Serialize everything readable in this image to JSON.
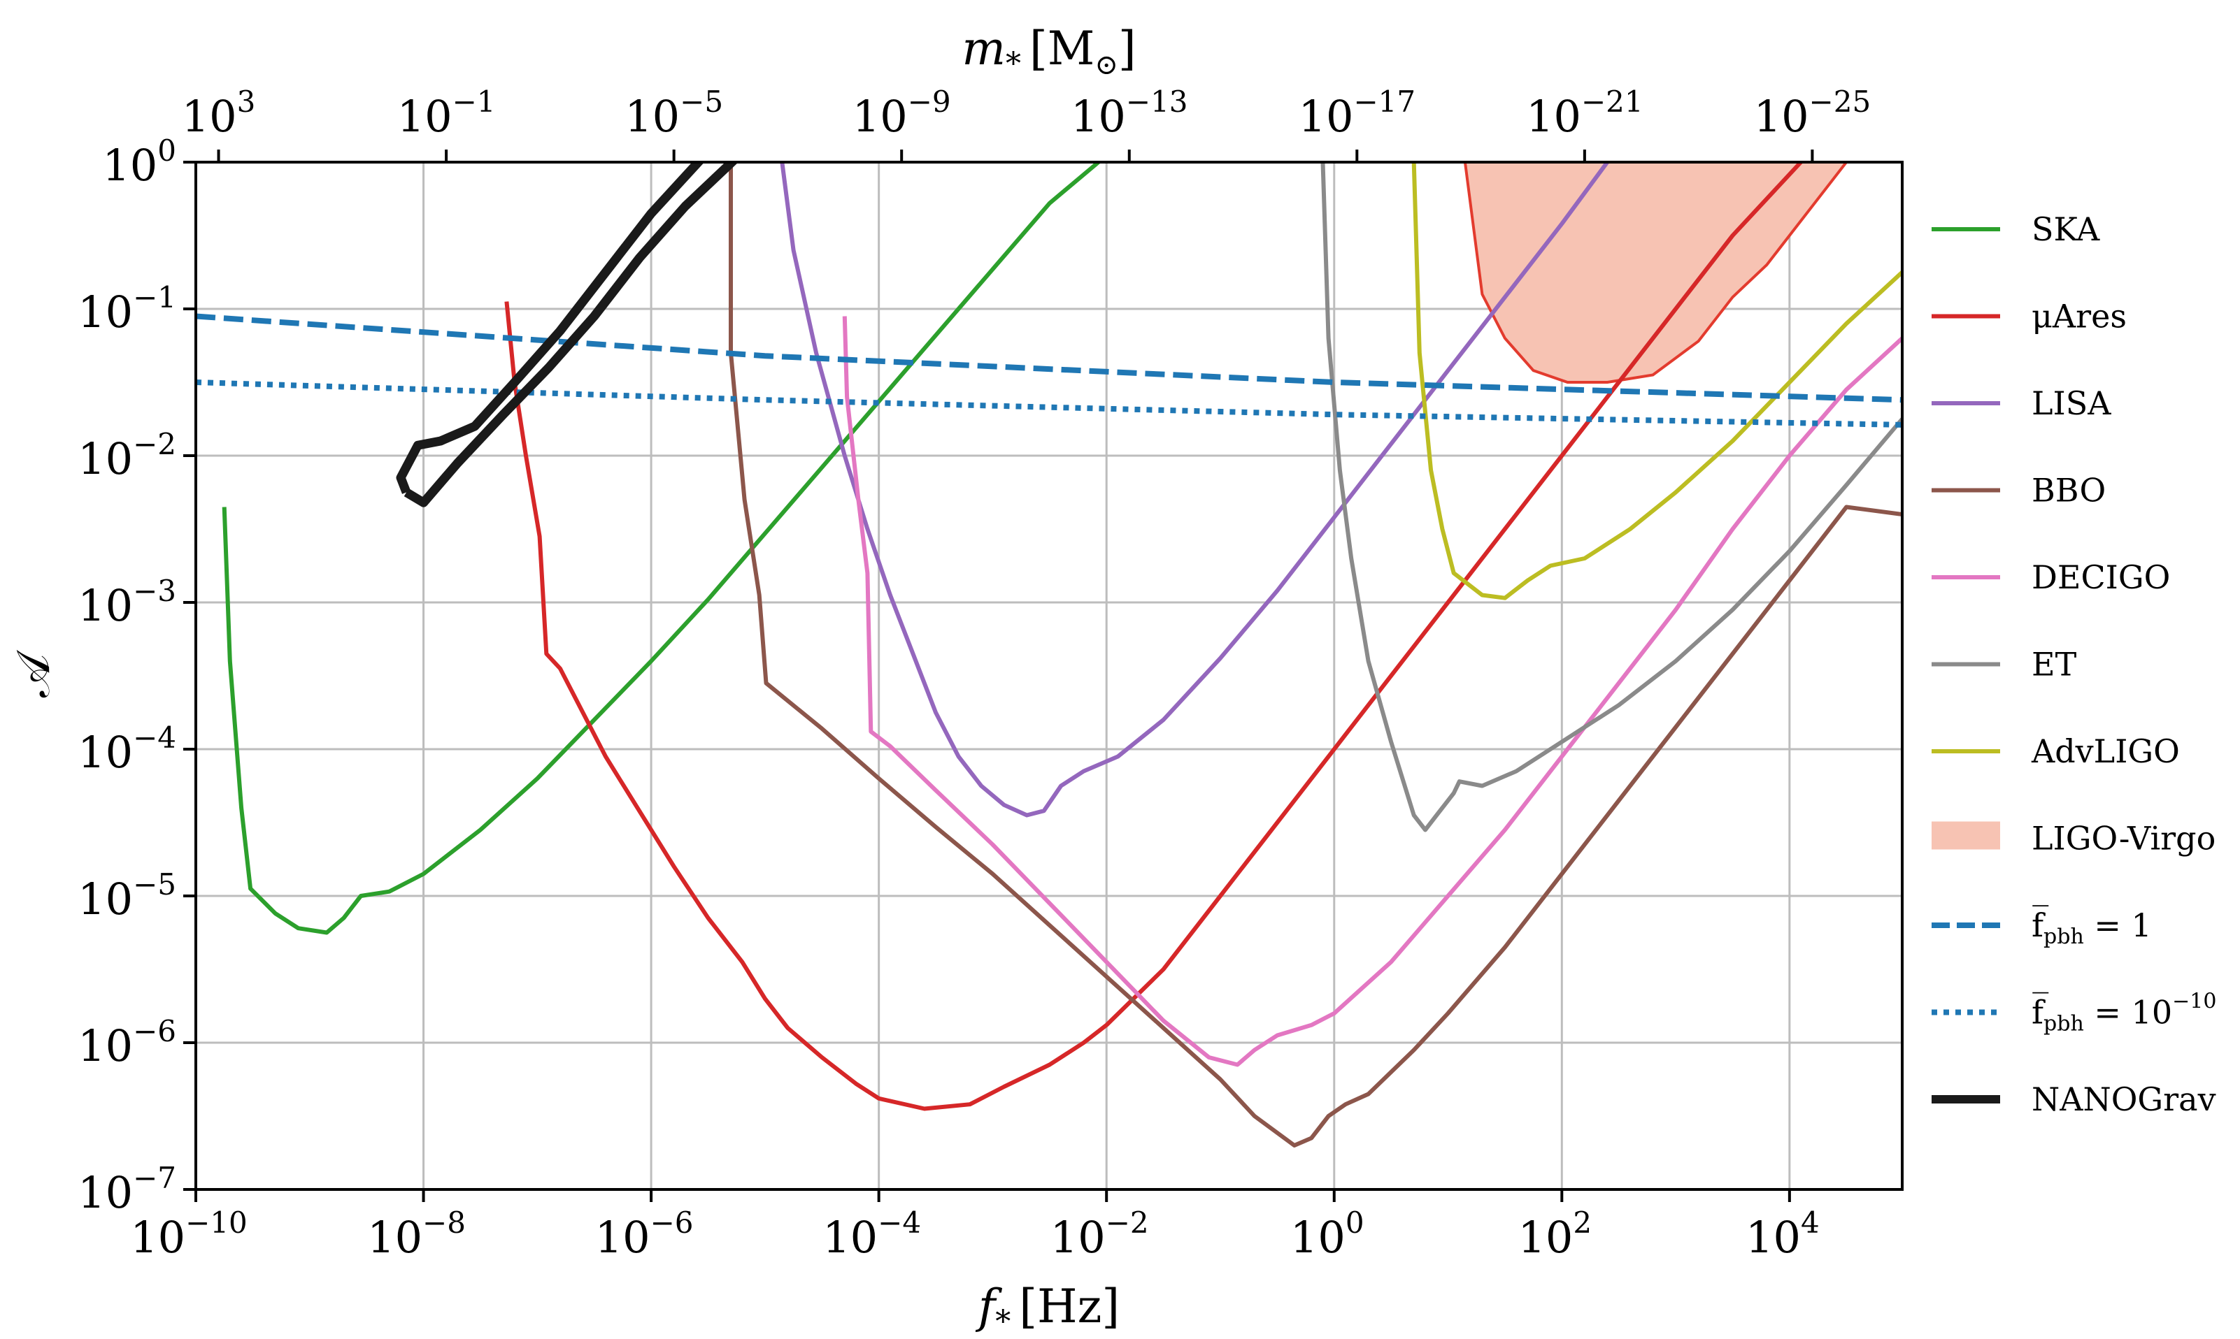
{
  "chart_data": {
    "type": "line",
    "x_axis": {
      "label": "f",
      "label_sub": "*",
      "label_unit": "[Hz]",
      "scale": "log",
      "range_log10": [
        -10,
        4.99
      ],
      "ticks": [
        {
          "base": "10",
          "exp": "−10",
          "log": -10
        },
        {
          "base": "10",
          "exp": "−8",
          "log": -8
        },
        {
          "base": "10",
          "exp": "−6",
          "log": -6
        },
        {
          "base": "10",
          "exp": "−4",
          "log": -4
        },
        {
          "base": "10",
          "exp": "−2",
          "log": -2
        },
        {
          "base": "10",
          "exp": "0",
          "log": 0
        },
        {
          "base": "10",
          "exp": "2",
          "log": 2
        },
        {
          "base": "10",
          "exp": "4",
          "log": 4
        }
      ]
    },
    "top_axis": {
      "label": "m",
      "label_sub": "*",
      "label_unit_open": "[M",
      "label_unit_close": "]",
      "ticks": [
        {
          "base": "10",
          "exp": "3",
          "at_f_log": -9.8
        },
        {
          "base": "10",
          "exp": "−1",
          "at_f_log": -7.8
        },
        {
          "base": "10",
          "exp": "−5",
          "at_f_log": -5.8
        },
        {
          "base": "10",
          "exp": "−9",
          "at_f_log": -3.8
        },
        {
          "base": "10",
          "exp": "−13",
          "at_f_log": -1.8
        },
        {
          "base": "10",
          "exp": "−17",
          "at_f_log": 0.2
        },
        {
          "base": "10",
          "exp": "−21",
          "at_f_log": 2.2
        },
        {
          "base": "10",
          "exp": "−25",
          "at_f_log": 4.2
        }
      ]
    },
    "y_axis": {
      "label": "𝒜",
      "scale": "log",
      "range_log10": [
        -7,
        0
      ],
      "ticks": [
        {
          "base": "10",
          "exp": "0",
          "log": 0
        },
        {
          "base": "10",
          "exp": "−1",
          "log": -1
        },
        {
          "base": "10",
          "exp": "−2",
          "log": -2
        },
        {
          "base": "10",
          "exp": "−3",
          "log": -3
        },
        {
          "base": "10",
          "exp": "−4",
          "log": -4
        },
        {
          "base": "10",
          "exp": "−5",
          "log": -5
        },
        {
          "base": "10",
          "exp": "−6",
          "log": -6
        },
        {
          "base": "10",
          "exp": "−7",
          "log": -7
        }
      ]
    },
    "grid": true,
    "legend_position": "right-outside",
    "series": [
      {
        "name": "SKA",
        "color": "#2ca02c",
        "style": "solid",
        "points": [
          [
            -9.75,
            -2.35
          ],
          [
            -9.7,
            -3.4
          ],
          [
            -9.6,
            -4.4
          ],
          [
            -9.52,
            -4.95
          ],
          [
            -9.3,
            -5.12
          ],
          [
            -9.1,
            -5.22
          ],
          [
            -8.85,
            -5.25
          ],
          [
            -8.7,
            -5.15
          ],
          [
            -8.55,
            -5.0
          ],
          [
            -8.3,
            -4.97
          ],
          [
            -8,
            -4.85
          ],
          [
            -7.5,
            -4.55
          ],
          [
            -7,
            -4.2
          ],
          [
            -6.5,
            -3.8
          ],
          [
            -6,
            -3.4
          ],
          [
            -5.5,
            -2.98
          ],
          [
            -5,
            -2.53
          ],
          [
            -4.5,
            -2.08
          ],
          [
            -4,
            -1.63
          ],
          [
            -3.5,
            -1.18
          ],
          [
            -3,
            -0.73
          ],
          [
            -2.5,
            -0.28
          ],
          [
            -2.07,
            0
          ]
        ]
      },
      {
        "name": "μAres",
        "color": "#d62728",
        "style": "solid",
        "points": [
          [
            -7.27,
            -0.95
          ],
          [
            -7.2,
            -1.5
          ],
          [
            -7.1,
            -2.0
          ],
          [
            -6.98,
            -2.55
          ],
          [
            -6.92,
            -3.35
          ],
          [
            -6.8,
            -3.45
          ],
          [
            -6.6,
            -3.75
          ],
          [
            -6.4,
            -4.05
          ],
          [
            -6.2,
            -4.3
          ],
          [
            -6,
            -4.55
          ],
          [
            -5.8,
            -4.8
          ],
          [
            -5.5,
            -5.15
          ],
          [
            -5.2,
            -5.45
          ],
          [
            -5,
            -5.7
          ],
          [
            -4.8,
            -5.9
          ],
          [
            -4.5,
            -6.1
          ],
          [
            -4.2,
            -6.28
          ],
          [
            -4,
            -6.38
          ],
          [
            -3.6,
            -6.45
          ],
          [
            -3.2,
            -6.42
          ],
          [
            -2.9,
            -6.3
          ],
          [
            -2.5,
            -6.15
          ],
          [
            -2.2,
            -6.0
          ],
          [
            -2,
            -5.88
          ],
          [
            -1.5,
            -5.5
          ],
          [
            -1,
            -5.0
          ],
          [
            -0.5,
            -4.5
          ],
          [
            0,
            -4.0
          ],
          [
            0.5,
            -3.5
          ],
          [
            1,
            -3.0
          ],
          [
            1.5,
            -2.5
          ],
          [
            2,
            -2.0
          ],
          [
            2.5,
            -1.5
          ],
          [
            3,
            -1.0
          ],
          [
            3.5,
            -0.5
          ],
          [
            4.1,
            0
          ]
        ]
      },
      {
        "name": "LISA",
        "color": "#9467bd",
        "style": "solid",
        "points": [
          [
            -4.85,
            0
          ],
          [
            -4.75,
            -0.6
          ],
          [
            -4.55,
            -1.3
          ],
          [
            -4.3,
            -2.0
          ],
          [
            -4.1,
            -2.5
          ],
          [
            -3.9,
            -2.95
          ],
          [
            -3.7,
            -3.35
          ],
          [
            -3.5,
            -3.75
          ],
          [
            -3.3,
            -4.05
          ],
          [
            -3.1,
            -4.25
          ],
          [
            -2.9,
            -4.38
          ],
          [
            -2.7,
            -4.45
          ],
          [
            -2.55,
            -4.42
          ],
          [
            -2.4,
            -4.25
          ],
          [
            -2.2,
            -4.15
          ],
          [
            -1.9,
            -4.05
          ],
          [
            -1.5,
            -3.8
          ],
          [
            -1,
            -3.38
          ],
          [
            -0.5,
            -2.92
          ],
          [
            0,
            -2.42
          ],
          [
            0.5,
            -1.92
          ],
          [
            1,
            -1.42
          ],
          [
            1.5,
            -0.92
          ],
          [
            2,
            -0.42
          ],
          [
            2.4,
            0
          ]
        ]
      },
      {
        "name": "BBO",
        "color": "#8c564b",
        "style": "solid",
        "points": [
          [
            -5.3,
            0
          ],
          [
            -5.3,
            -1.3
          ],
          [
            -5.18,
            -2.3
          ],
          [
            -5.05,
            -2.95
          ],
          [
            -4.99,
            -3.55
          ],
          [
            -4.5,
            -3.86
          ],
          [
            -4,
            -4.2
          ],
          [
            -3.5,
            -4.53
          ],
          [
            -3,
            -4.85
          ],
          [
            -2.5,
            -5.2
          ],
          [
            -2,
            -5.55
          ],
          [
            -1.5,
            -5.9
          ],
          [
            -1,
            -6.25
          ],
          [
            -0.7,
            -6.5
          ],
          [
            -0.35,
            -6.7
          ],
          [
            -0.2,
            -6.65
          ],
          [
            -0.05,
            -6.5
          ],
          [
            0.1,
            -6.42
          ],
          [
            0.3,
            -6.35
          ],
          [
            0.7,
            -6.05
          ],
          [
            1,
            -5.8
          ],
          [
            1.5,
            -5.35
          ],
          [
            2,
            -4.85
          ],
          [
            2.5,
            -4.35
          ],
          [
            3,
            -3.85
          ],
          [
            3.5,
            -3.35
          ],
          [
            4,
            -2.85
          ],
          [
            4.5,
            -2.35
          ],
          [
            4.99,
            -2.4
          ]
        ]
      },
      {
        "name": "DECIGO",
        "color": "#e377c2",
        "style": "solid",
        "points": [
          [
            -4.3,
            -1.05
          ],
          [
            -4.28,
            -1.6
          ],
          [
            -4.18,
            -2.3
          ],
          [
            -4.1,
            -2.8
          ],
          [
            -4.07,
            -3.88
          ],
          [
            -3.9,
            -3.98
          ],
          [
            -3.5,
            -4.28
          ],
          [
            -3,
            -4.65
          ],
          [
            -2.5,
            -5.05
          ],
          [
            -2,
            -5.45
          ],
          [
            -1.5,
            -5.85
          ],
          [
            -1.1,
            -6.1
          ],
          [
            -0.85,
            -6.15
          ],
          [
            -0.7,
            -6.05
          ],
          [
            -0.5,
            -5.95
          ],
          [
            -0.2,
            -5.88
          ],
          [
            0,
            -5.8
          ],
          [
            0.5,
            -5.45
          ],
          [
            1,
            -5.0
          ],
          [
            1.5,
            -4.55
          ],
          [
            2,
            -4.05
          ],
          [
            2.5,
            -3.55
          ],
          [
            3,
            -3.05
          ],
          [
            3.5,
            -2.5
          ],
          [
            4,
            -2.0
          ],
          [
            4.5,
            -1.55
          ],
          [
            4.99,
            -1.2
          ]
        ]
      },
      {
        "name": "ET",
        "color": "#8a8a8a",
        "style": "solid",
        "points": [
          [
            -0.1,
            0
          ],
          [
            -0.05,
            -1.2
          ],
          [
            0.05,
            -2.1
          ],
          [
            0.15,
            -2.7
          ],
          [
            0.3,
            -3.4
          ],
          [
            0.5,
            -3.95
          ],
          [
            0.7,
            -4.45
          ],
          [
            0.8,
            -4.55
          ],
          [
            0.9,
            -4.45
          ],
          [
            1.05,
            -4.3
          ],
          [
            1.1,
            -4.22
          ],
          [
            1.3,
            -4.25
          ],
          [
            1.6,
            -4.15
          ],
          [
            2,
            -3.95
          ],
          [
            2.5,
            -3.7
          ],
          [
            3,
            -3.4
          ],
          [
            3.5,
            -3.05
          ],
          [
            4,
            -2.65
          ],
          [
            4.5,
            -2.2
          ],
          [
            4.99,
            -1.75
          ]
        ]
      },
      {
        "name": "AdvLIGO",
        "color": "#bcbd22",
        "style": "solid",
        "points": [
          [
            0.7,
            0
          ],
          [
            0.75,
            -1.3
          ],
          [
            0.85,
            -2.1
          ],
          [
            0.95,
            -2.5
          ],
          [
            1.05,
            -2.8
          ],
          [
            1.3,
            -2.95
          ],
          [
            1.5,
            -2.97
          ],
          [
            1.7,
            -2.85
          ],
          [
            1.9,
            -2.75
          ],
          [
            2.2,
            -2.7
          ],
          [
            2.6,
            -2.5
          ],
          [
            3,
            -2.25
          ],
          [
            3.5,
            -1.9
          ],
          [
            4,
            -1.5
          ],
          [
            4.5,
            -1.1
          ],
          [
            4.99,
            -0.75
          ]
        ]
      },
      {
        "name": "f̅pbh = 1",
        "color": "#1f77b4",
        "style": "dashed",
        "points": [
          [
            -10,
            -1.05
          ],
          [
            -5,
            -1.32
          ],
          [
            0,
            -1.5
          ],
          [
            4.99,
            -1.62
          ]
        ]
      },
      {
        "name": "f̅pbh = 10^−10",
        "color": "#1f77b4",
        "style": "dotted",
        "points": [
          [
            -10,
            -1.5
          ],
          [
            -5,
            -1.62
          ],
          [
            0,
            -1.72
          ],
          [
            4.99,
            -1.79
          ]
        ]
      },
      {
        "name": "NANOGrav",
        "color": "#1a1a1a",
        "style": "solid-thick",
        "points": [
          [
            -8.15,
            -2.25
          ],
          [
            -8.0,
            -2.32
          ],
          [
            -7.7,
            -2.05
          ],
          [
            -7.3,
            -1.72
          ],
          [
            -6.9,
            -1.4
          ],
          [
            -6.5,
            -1.05
          ],
          [
            -6.1,
            -0.65
          ],
          [
            -5.7,
            -0.3
          ],
          [
            -5.25,
            0.03
          ],
          [
            -5.55,
            0.03
          ],
          [
            -6.0,
            -0.35
          ],
          [
            -6.4,
            -0.75
          ],
          [
            -6.8,
            -1.15
          ],
          [
            -7.2,
            -1.5
          ],
          [
            -7.55,
            -1.8
          ],
          [
            -7.85,
            -1.9
          ],
          [
            -8.05,
            -1.93
          ],
          [
            -8.2,
            -2.15
          ],
          [
            -8.15,
            -2.25
          ]
        ]
      }
    ],
    "regions": [
      {
        "name": "LIGO-Virgo",
        "color": "#f7c3b3",
        "edge": "#e33b2e",
        "points": [
          [
            1.15,
            0
          ],
          [
            1.3,
            -0.9
          ],
          [
            1.5,
            -1.2
          ],
          [
            1.75,
            -1.42
          ],
          [
            2.05,
            -1.5
          ],
          [
            2.4,
            -1.5
          ],
          [
            2.8,
            -1.45
          ],
          [
            3.2,
            -1.22
          ],
          [
            3.5,
            -0.92
          ],
          [
            3.8,
            -0.7
          ],
          [
            4.1,
            -0.4
          ],
          [
            4.5,
            0
          ],
          [
            1.15,
            0
          ]
        ]
      }
    ],
    "legend": [
      {
        "label": "SKA",
        "kind": "line",
        "color": "#2ca02c",
        "dash": "solid"
      },
      {
        "label": "μAres",
        "kind": "line",
        "color": "#d62728",
        "dash": "solid"
      },
      {
        "label": "LISA",
        "kind": "line",
        "color": "#9467bd",
        "dash": "solid"
      },
      {
        "label": "BBO",
        "kind": "line",
        "color": "#8c564b",
        "dash": "solid"
      },
      {
        "label": "DECIGO",
        "kind": "line",
        "color": "#e377c2",
        "dash": "solid"
      },
      {
        "label": "ET",
        "kind": "line",
        "color": "#8a8a8a",
        "dash": "solid"
      },
      {
        "label": "AdvLIGO",
        "kind": "line",
        "color": "#bcbd22",
        "dash": "solid"
      },
      {
        "label": "LIGO-Virgo",
        "kind": "patch",
        "color": "#f7c3b3"
      },
      {
        "label": "f̅",
        "label_sub": "pbh",
        "label_tail": " = 1",
        "kind": "line",
        "color": "#1f77b4",
        "dash": "dashed"
      },
      {
        "label": "f̅",
        "label_sub": "pbh",
        "label_tail": " = 10",
        "label_sup": "−10",
        "kind": "line",
        "color": "#1f77b4",
        "dash": "dotted"
      },
      {
        "label": "NANOGrav",
        "kind": "line",
        "color": "#1a1a1a",
        "dash": "thick"
      }
    ]
  }
}
